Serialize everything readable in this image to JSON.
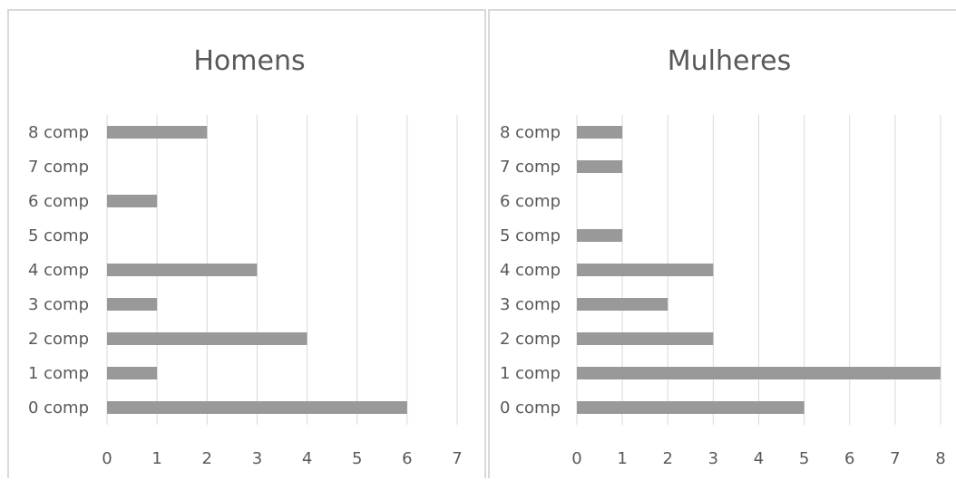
{
  "colors": {
    "bar": "#999999",
    "grid": "#d9d9d9",
    "text": "#595959"
  },
  "chart_data": [
    {
      "type": "bar",
      "orientation": "horizontal",
      "title": "Homens",
      "categories": [
        "0 comp",
        "1 comp",
        "2 comp",
        "3 comp",
        "4 comp",
        "5 comp",
        "6 comp",
        "7 comp",
        "8 comp"
      ],
      "values": [
        6,
        1,
        4,
        1,
        3,
        0,
        1,
        0,
        2
      ],
      "xlim": [
        0,
        7
      ],
      "x_ticks": [
        "0",
        "1",
        "2",
        "3",
        "4",
        "5",
        "6",
        "7"
      ],
      "grid": true,
      "legend": "none"
    },
    {
      "type": "bar",
      "orientation": "horizontal",
      "title": "Mulheres",
      "categories": [
        "0 comp",
        "1 comp",
        "2 comp",
        "3 comp",
        "4 comp",
        "5 comp",
        "6 comp",
        "7 comp",
        "8 comp"
      ],
      "values": [
        5,
        8,
        3,
        2,
        3,
        1,
        0,
        1,
        1
      ],
      "xlim": [
        0,
        8
      ],
      "x_ticks": [
        "0",
        "1",
        "2",
        "3",
        "4",
        "5",
        "6",
        "7",
        "8"
      ],
      "grid": true,
      "legend": "none"
    }
  ]
}
